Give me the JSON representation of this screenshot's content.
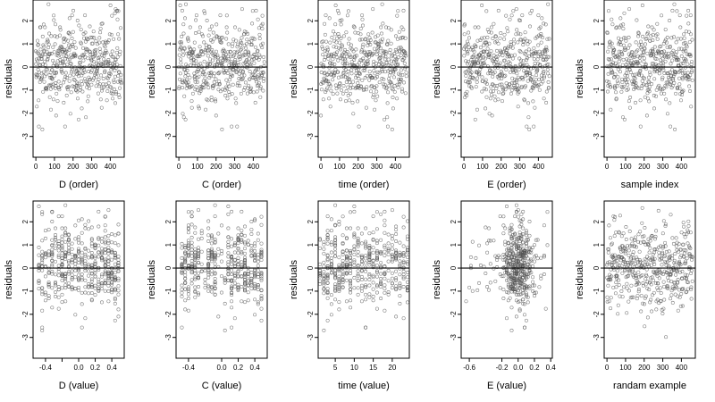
{
  "figure": {
    "background": "#ffffff",
    "point_color": "#555555",
    "line_color": "#000000"
  },
  "chart_data": [
    {
      "type": "scatter",
      "xlabel": "D (order)",
      "ylabel": "residuals",
      "xlim": [
        -15,
        475
      ],
      "ylim": [
        -3.9,
        2.9
      ],
      "xticks": [
        0,
        100,
        200,
        300,
        400
      ],
      "xtick_labels": [
        "0",
        "100",
        "200",
        "300",
        "400"
      ],
      "yticks": [
        -3,
        -2,
        -1,
        0,
        1,
        2
      ],
      "ytick_labels": [
        "-3",
        "-2",
        "-1",
        "0",
        "1",
        "2"
      ],
      "hline": 0,
      "n_points": 460,
      "points": []
    },
    {
      "type": "scatter",
      "xlabel": "C (order)",
      "ylabel": "residuals",
      "xlim": [
        -15,
        475
      ],
      "ylim": [
        -3.9,
        2.9
      ],
      "xticks": [
        0,
        100,
        200,
        300,
        400
      ],
      "xtick_labels": [
        "0",
        "100",
        "200",
        "300",
        "400"
      ],
      "yticks": [
        -3,
        -2,
        -1,
        0,
        1,
        2
      ],
      "ytick_labels": [
        "-3",
        "-2",
        "-1",
        "0",
        "1",
        "2"
      ],
      "hline": 0,
      "n_points": 460,
      "points": []
    },
    {
      "type": "scatter",
      "xlabel": "time (order)",
      "ylabel": "residuals",
      "xlim": [
        -15,
        475
      ],
      "ylim": [
        -3.9,
        2.9
      ],
      "xticks": [
        0,
        100,
        200,
        300,
        400
      ],
      "xtick_labels": [
        "0",
        "100",
        "200",
        "300",
        "400"
      ],
      "yticks": [
        -3,
        -2,
        -1,
        0,
        1,
        2
      ],
      "ytick_labels": [
        "-3",
        "-2",
        "-1",
        "0",
        "1",
        "2"
      ],
      "hline": 0,
      "n_points": 460,
      "points": []
    },
    {
      "type": "scatter",
      "xlabel": "E (order)",
      "ylabel": "residuals",
      "xlim": [
        -15,
        475
      ],
      "ylim": [
        -3.9,
        2.9
      ],
      "xticks": [
        0,
        100,
        200,
        300,
        400
      ],
      "xtick_labels": [
        "0",
        "100",
        "200",
        "300",
        "400"
      ],
      "yticks": [
        -3,
        -2,
        -1,
        0,
        1,
        2
      ],
      "ytick_labels": [
        "-3",
        "-2",
        "-1",
        "0",
        "1",
        "2"
      ],
      "hline": 0,
      "n_points": 460,
      "points": []
    },
    {
      "type": "scatter",
      "xlabel": "sample index",
      "ylabel": "residuals",
      "xlim": [
        -15,
        475
      ],
      "ylim": [
        -3.9,
        2.9
      ],
      "xticks": [
        0,
        100,
        200,
        300,
        400
      ],
      "xtick_labels": [
        "0",
        "100",
        "200",
        "300",
        "400"
      ],
      "yticks": [
        -3,
        -2,
        -1,
        0,
        1,
        2
      ],
      "ytick_labels": [
        "-3",
        "-2",
        "-1",
        "0",
        "1",
        "2"
      ],
      "hline": 0,
      "n_points": 460,
      "points": []
    },
    {
      "type": "scatter",
      "xlabel": "D (value)",
      "ylabel": "residuals",
      "xlim": [
        -0.55,
        0.55
      ],
      "ylim": [
        -3.9,
        2.9
      ],
      "xticks": [
        -0.4,
        -0.2,
        0,
        0.2,
        0.4
      ],
      "xtick_labels": [
        "-0.4",
        "",
        "0.0",
        "0.2",
        "0.4"
      ],
      "yticks": [
        -3,
        -2,
        -1,
        0,
        1,
        2
      ],
      "ytick_labels": [
        "-3",
        "-2",
        "-1",
        "0",
        "1",
        "2"
      ],
      "hline": 0,
      "n_points": 460,
      "points": []
    },
    {
      "type": "scatter",
      "xlabel": "C (value)",
      "ylabel": "residuals",
      "xlim": [
        -0.55,
        0.55
      ],
      "ylim": [
        -3.9,
        2.9
      ],
      "xticks": [
        -0.4,
        0,
        0.2,
        0.4
      ],
      "xtick_labels": [
        "-0.4",
        "0.0",
        "0.2",
        "0.4"
      ],
      "yticks": [
        -3,
        -2,
        -1,
        0,
        1,
        2
      ],
      "ytick_labels": [
        "-3",
        "-2",
        "-1",
        "0",
        "1",
        "2"
      ],
      "hline": 0,
      "n_points": 460,
      "points": []
    },
    {
      "type": "scatter",
      "xlabel": "time (value)",
      "ylabel": "residuals",
      "xlim": [
        0.5,
        24.5
      ],
      "ylim": [
        -3.9,
        2.9
      ],
      "xticks": [
        5,
        10,
        15,
        20
      ],
      "xtick_labels": [
        "5",
        "10",
        "15",
        "20"
      ],
      "yticks": [
        -3,
        -2,
        -1,
        0,
        1,
        2
      ],
      "ytick_labels": [
        "-3",
        "-2",
        "-1",
        "0",
        "1",
        "2"
      ],
      "hline": 0,
      "n_points": 460,
      "points": []
    },
    {
      "type": "scatter",
      "xlabel": "E (value)",
      "ylabel": "residuals",
      "xlim": [
        -0.7,
        0.42
      ],
      "ylim": [
        -3.9,
        2.9
      ],
      "xticks": [
        -0.6,
        -0.2,
        0,
        0.2,
        0.4
      ],
      "xtick_labels": [
        "-0.6",
        "-0.2",
        "0.0",
        "0.2",
        "0.4"
      ],
      "yticks": [
        -3,
        -2,
        -1,
        0,
        1,
        2
      ],
      "ytick_labels": [
        "-3",
        "-2",
        "-1",
        "0",
        "1",
        "2"
      ],
      "hline": 0,
      "n_points": 460,
      "points": []
    },
    {
      "type": "scatter",
      "xlabel": "randam example",
      "ylabel": "residuals",
      "xlim": [
        -15,
        475
      ],
      "ylim": [
        -3.9,
        2.9
      ],
      "xticks": [
        0,
        100,
        200,
        300,
        400
      ],
      "xtick_labels": [
        "0",
        "100",
        "200",
        "300",
        "400"
      ],
      "yticks": [
        -3,
        -2,
        -1,
        0,
        1,
        2
      ],
      "ytick_labels": [
        "-3",
        "-2",
        "-1",
        "0",
        "1",
        "2"
      ],
      "hline": 0,
      "n_points": 460,
      "points": []
    }
  ]
}
